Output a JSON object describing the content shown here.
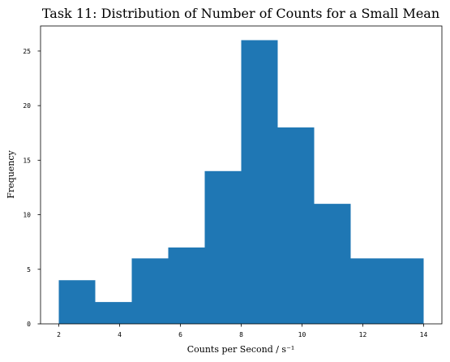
{
  "chart_data": {
    "type": "bar",
    "title": "Task 11: Distribution of Number of Counts for a Small Mean",
    "xlabel": "Counts per Second / s⁻¹",
    "ylabel": "Frequency",
    "xlim": [
      1.4,
      14.6
    ],
    "ylim": [
      0,
      27.3
    ],
    "xticks": [
      2,
      4,
      6,
      8,
      10,
      12,
      14
    ],
    "yticks": [
      0,
      5,
      10,
      15,
      20,
      25
    ],
    "bins": [
      {
        "x0": 2.0,
        "x1": 3.2,
        "value": 4
      },
      {
        "x0": 3.2,
        "x1": 4.4,
        "value": 2
      },
      {
        "x0": 4.4,
        "x1": 5.6,
        "value": 6
      },
      {
        "x0": 5.6,
        "x1": 6.8,
        "value": 7
      },
      {
        "x0": 6.8,
        "x1": 8.0,
        "value": 14
      },
      {
        "x0": 8.0,
        "x1": 9.2,
        "value": 26
      },
      {
        "x0": 9.2,
        "x1": 10.4,
        "value": 18
      },
      {
        "x0": 10.4,
        "x1": 11.6,
        "value": 11
      },
      {
        "x0": 11.6,
        "x1": 12.8,
        "value": 6
      },
      {
        "x0": 12.8,
        "x1": 14.0,
        "value": 6
      }
    ],
    "grid": false,
    "colors": {
      "bar": "#1f77b4"
    }
  }
}
